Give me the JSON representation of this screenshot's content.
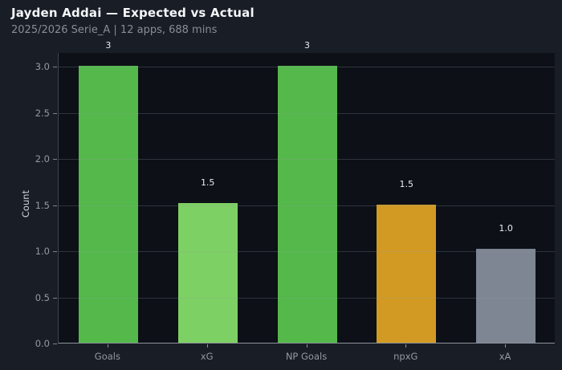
{
  "header": {
    "title": "Jayden Addai — Expected vs Actual",
    "subtitle": "2025/2026 Serie_A | 12 apps, 688 mins"
  },
  "chart_data": {
    "type": "bar",
    "title": "Jayden Addai — Expected vs Actual",
    "subtitle": "2025/2026 Serie_A | 12 apps, 688 mins",
    "categories": [
      "Goals",
      "xG",
      "NP Goals",
      "npxG",
      "xA"
    ],
    "values": [
      3,
      1.51,
      3,
      1.5,
      1.02
    ],
    "bar_labels": [
      "3",
      "1.5",
      "3",
      "1.5",
      "1.0"
    ],
    "bar_colors": [
      "#54b84a",
      "#7dd063",
      "#54b84a",
      "#d29a22",
      "#7e8593"
    ],
    "xlabel": "",
    "ylabel": "Count",
    "ylim": [
      0,
      3.15
    ],
    "yticks": [
      0.0,
      0.5,
      1.0,
      1.5,
      2.0,
      2.5,
      3.0
    ],
    "ytick_labels": [
      "0.0",
      "0.5",
      "1.0",
      "1.5",
      "2.0",
      "2.5",
      "3.0"
    ],
    "grid": "horizontal-over-bars",
    "legend": "none",
    "colors": {
      "figure_bg": "#191d25",
      "plot_bg": "#0d1017",
      "grid": "rgba(148,155,168,0.25)",
      "axis_line_bottom": "#8d929b",
      "axis_line_left": "#3f4550",
      "tick_text": "#9399a2",
      "value_label_text": "#e9ecf0",
      "title_text": "#f4f6f9",
      "subtitle_text": "#878d97"
    }
  }
}
